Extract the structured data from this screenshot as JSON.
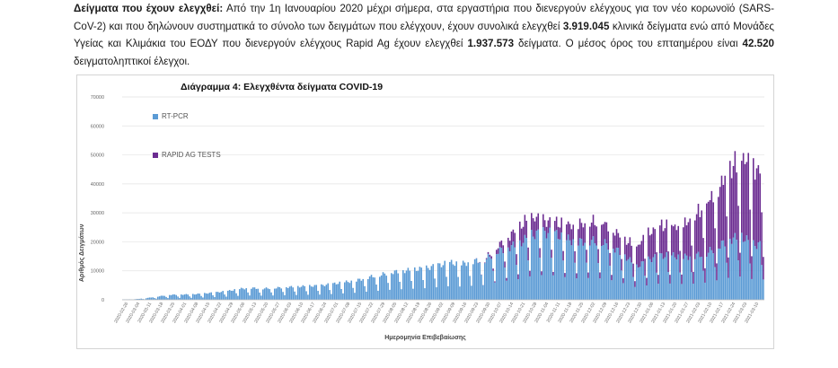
{
  "paragraph": {
    "heading": "Δείγματα που έχουν ελεγχθεί:",
    "text1": " Από την 1η Ιανουαρίου 2020 μέχρι σήμερα, στα εργαστήρια που διενεργούν ελέγχους για τον νέο κορωνοϊό (SARS-CoV-2) και που δηλώνουν συστηματικά το σύνολο των δειγμάτων που ελέγχουν, έχουν συνολικά ελεγχθεί ",
    "value1": "3.919.045",
    "text2": " κλινικά δείγματα ενώ από Μονάδες Υγείας και Κλιμάκια του ΕΟΔΥ που διενεργούν ελέγχους Rapid Ag έχουν ελεγχθεί ",
    "value2": "1.937.573",
    "text3": " δείγματα. Ο μέσος όρος του επταημέρου είναι ",
    "value3": "42.520",
    "text4": " δειγματοληπτικοί έλεγχοι."
  },
  "chart_data": {
    "type": "bar",
    "stacked": true,
    "title": "Διάγραμμα 4: Ελεγχθέντα δείγματα COVID-19",
    "xlabel": "Ημερομηνία Επιβεβαίωσης",
    "ylabel": "Αριθμός Δειγμάτων",
    "ylim": [
      0,
      70000
    ],
    "yticks": [
      "0",
      "10000",
      "20000",
      "30000",
      "40000",
      "50000",
      "60000",
      "70000"
    ],
    "grid": true,
    "legend_position": "left",
    "colors": {
      "rt_pcr": "#5b9bd5",
      "rapid_ag": "#6b2c91"
    },
    "series_names": [
      "RT-PCR",
      "RAPID AG TESTS"
    ],
    "date_ticks": [
      "2020-02-26",
      "2020-03-04",
      "2020-03-11",
      "2020-03-18",
      "2020-03-25",
      "2020-04-01",
      "2020-04-08",
      "2020-04-15",
      "2020-04-22",
      "2020-04-29",
      "2020-05-06",
      "2020-05-13",
      "2020-05-20",
      "2020-05-27",
      "2020-06-03",
      "2020-06-10",
      "2020-06-17",
      "2020-06-24",
      "2020-07-01",
      "2020-07-08",
      "2020-07-15",
      "2020-07-22",
      "2020-07-29",
      "2020-08-05",
      "2020-08-12",
      "2020-08-19",
      "2020-08-26",
      "2020-09-02",
      "2020-09-09",
      "2020-09-16",
      "2020-09-23",
      "2020-09-30",
      "2020-10-07",
      "2020-10-14",
      "2020-10-21",
      "2020-10-28",
      "2020-11-04",
      "2020-11-11",
      "2020-11-18",
      "2020-11-25",
      "2020-12-02",
      "2020-12-09",
      "2020-12-16",
      "2020-12-23",
      "2020-12-30",
      "2021-01-06",
      "2021-01-13",
      "2021-01-20",
      "2021-01-27",
      "2021-02-03",
      "2021-02-10",
      "2021-02-17",
      "2021-02-24",
      "2021-03-03",
      "2021-03-10"
    ],
    "x_start": "2020-02-26",
    "rt_pcr_weekly": [
      100,
      200,
      600,
      1200,
      1800,
      1900,
      2000,
      2300,
      2700,
      3200,
      4000,
      4300,
      4100,
      4300,
      4600,
      4800,
      5000,
      5200,
      5800,
      6400,
      7000,
      8200,
      9000,
      10000,
      10500,
      11000,
      11500,
      12500,
      13500,
      13000,
      14000,
      14500,
      17500,
      19000,
      20500,
      23500,
      24500,
      24000,
      22000,
      21000,
      21500,
      21000,
      19000,
      16000,
      12000,
      14500,
      16000,
      16000,
      15500,
      16000,
      17000,
      19500,
      22000,
      23000,
      20000
    ],
    "rapid_ag_weekly": [
      0,
      0,
      0,
      0,
      0,
      0,
      0,
      0,
      0,
      0,
      0,
      0,
      0,
      0,
      0,
      0,
      0,
      0,
      0,
      0,
      0,
      0,
      0,
      0,
      0,
      0,
      0,
      0,
      0,
      0,
      0,
      200,
      1500,
      3500,
      6000,
      6500,
      4000,
      4000,
      5000,
      6000,
      6500,
      7000,
      6000,
      5500,
      7000,
      9000,
      10500,
      10000,
      11000,
      14000,
      17000,
      20000,
      24000,
      28000,
      26000
    ]
  }
}
